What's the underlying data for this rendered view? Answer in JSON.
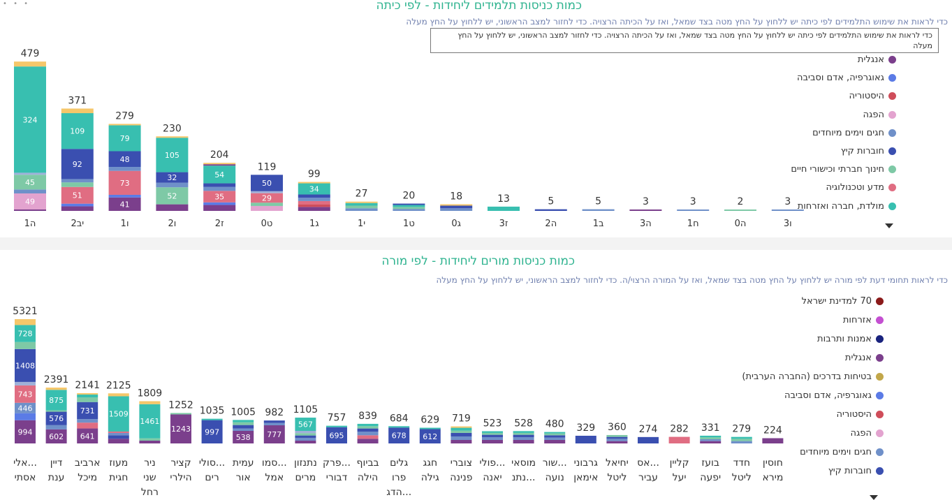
{
  "panel1": {
    "title": "כמות כניסות תלמידים ליחידות - לפי כיתה",
    "subtitle": "כדי לראות את שימוש התלמידים לפי כיתה יש ללחוץ על החץ מטה בצד שמאל, ואז על הכיתה הרצויה. כדי לחזור למצב הראשוני, יש ללחוץ על החץ מעלה",
    "tooltip": "כדי לראות את שימוש התלמידים לפי כיתה יש ללחוץ על החץ מטה בצד שמאל, ואז על הכיתה הרצויה. כדי לחזור למצב הראשוני, יש ללחוץ על החץ מעלה",
    "legend": [
      {
        "label": "אנגלית",
        "color": "#7b3f8c"
      },
      {
        "label": "גאוגרפיה, אדם וסביבה",
        "color": "#5b7be6"
      },
      {
        "label": "היסטוריה",
        "color": "#cf4d5a"
      },
      {
        "label": "הפגה",
        "color": "#e3a3cf"
      },
      {
        "label": "חגים וימים מיוחדים",
        "color": "#6f90c9"
      },
      {
        "label": "חוברות קיץ",
        "color": "#3a4fb0"
      },
      {
        "label": "חינוך חברתי וכישורי חיים",
        "color": "#7ec9a6"
      },
      {
        "label": "מדע וטכנולוגיה",
        "color": "#e06d82"
      },
      {
        "label": "מולדת, חברה ואזרחות",
        "color": "#38bfb0"
      }
    ]
  },
  "panel2": {
    "title": "כמות כניסות מורים ליחידות - לפי מורה",
    "subtitle": "כדי לראות תחומי דעת לפי מורה יש ללחוץ על החץ מטה בצד שמאל, ואז על המורה הרצוי/ה. כדי לחזור למצב הראשוני, יש ללחוץ על החץ מעלה",
    "legend": [
      {
        "label": "70 למדינת ישראל",
        "color": "#8b1a1a"
      },
      {
        "label": "אזרחות",
        "color": "#c44fd1"
      },
      {
        "label": "אמנות ותרבות",
        "color": "#1a237e"
      },
      {
        "label": "אנגלית",
        "color": "#7b3f8c"
      },
      {
        "label": "בטיחות בדרכים (החברה הערבית)",
        "color": "#c2a74a"
      },
      {
        "label": "גאוגרפיה, אדם וסביבה",
        "color": "#5b7be6"
      },
      {
        "label": "היסטוריה",
        "color": "#cf4d5a"
      },
      {
        "label": "הפגה",
        "color": "#e3a3cf"
      },
      {
        "label": "חגים וימים מיוחדים",
        "color": "#6f90c9"
      },
      {
        "label": "חוברות קיץ",
        "color": "#3a4fb0"
      }
    ]
  },
  "chart_data": [
    {
      "type": "bar",
      "stacked": true,
      "title": "כמות כניסות תלמידים ליחידות - לפי כיתה",
      "categories": [
        "ה1",
        "יב2",
        "ו1",
        "ו2",
        "ז2",
        "ט0",
        "ג1",
        "י1",
        "ט1",
        "ג0",
        "ז3",
        "ה2",
        "ב1",
        "ה3",
        "ח1",
        "ה0",
        "ו3"
      ],
      "totals": [
        479,
        371,
        279,
        230,
        204,
        119,
        99,
        27,
        20,
        18,
        13,
        5,
        5,
        3,
        3,
        2,
        3
      ],
      "segments": [
        [
          [
            "#7b3f8c",
            4
          ],
          [
            "#e3a3cf",
            49
          ],
          [
            "#6f90c9",
            12
          ],
          [
            "#7ec9a6",
            45
          ],
          [
            "#9fb0d8",
            6
          ],
          [
            "#38bfb0",
            324
          ],
          [
            "#f5c76a",
            15
          ]
        ],
        [
          [
            "#7b3f8c",
            14
          ],
          [
            "#5b7be6",
            8
          ],
          [
            "#e06d82",
            51
          ],
          [
            "#7ec9a6",
            14
          ],
          [
            "#6f90c9",
            10
          ],
          [
            "#3a4fb0",
            92
          ],
          [
            "#38bfb0",
            109
          ],
          [
            "#f5c76a",
            14
          ]
        ],
        [
          [
            "#7b3f8c",
            41
          ],
          [
            "#5b7be6",
            8
          ],
          [
            "#e06d82",
            73
          ],
          [
            "#6f90c9",
            12
          ],
          [
            "#3a4fb0",
            48
          ],
          [
            "#38bfb0",
            79
          ],
          [
            "#f5c76a",
            3
          ]
        ],
        [
          [
            "#7b3f8c",
            20
          ],
          [
            "#7ec9a6",
            52
          ],
          [
            "#6f90c9",
            14
          ],
          [
            "#3a4fb0",
            32
          ],
          [
            "#38bfb0",
            105
          ],
          [
            "#f5c76a",
            3
          ]
        ],
        [
          [
            "#7b3f8c",
            18
          ],
          [
            "#5b7be6",
            8
          ],
          [
            "#e06d82",
            35
          ],
          [
            "#6f90c9",
            12
          ],
          [
            "#3a4fb0",
            11
          ],
          [
            "#38bfb0",
            54
          ],
          [
            "#7b3f8c",
            4
          ],
          [
            "#f5c76a",
            3
          ]
        ],
        [
          [
            "#e3a3cf",
            15
          ],
          [
            "#7ec9a6",
            10
          ],
          [
            "#e06d82",
            29
          ],
          [
            "#9fb0d8",
            6
          ],
          [
            "#3a4fb0",
            50
          ]
        ],
        [
          [
            "#7b3f8c",
            12
          ],
          [
            "#cf4d5a",
            8
          ],
          [
            "#e06d82",
            10
          ],
          [
            "#6f90c9",
            10
          ],
          [
            "#3a4fb0",
            10
          ],
          [
            "#38bfb0",
            34
          ],
          [
            "#f5c76a",
            3
          ]
        ],
        [
          [
            "#6f90c9",
            8
          ],
          [
            "#7ec9a6",
            8
          ],
          [
            "#38bfb0",
            8
          ],
          [
            "#f5c76a",
            3
          ]
        ],
        [
          [
            "#6f90c9",
            6
          ],
          [
            "#7ec9a6",
            6
          ],
          [
            "#38bfb0",
            6
          ],
          [
            "#3a4fb0",
            2
          ]
        ],
        [
          [
            "#6f90c9",
            8
          ],
          [
            "#3a4fb0",
            8
          ],
          [
            "#f5c76a",
            2
          ]
        ],
        [
          [
            "#38bfb0",
            13
          ]
        ],
        [
          [
            "#3a4fb0",
            5
          ]
        ],
        [
          [
            "#6f90c9",
            5
          ]
        ],
        [
          [
            "#7b3f8c",
            3
          ]
        ],
        [
          [
            "#6f90c9",
            3
          ]
        ],
        [
          [
            "#7ec9a6",
            2
          ]
        ],
        [
          [
            "#6f90c9",
            3
          ]
        ]
      ],
      "data_labels": [
        [
          [
            1,
            49
          ],
          [
            3,
            45
          ],
          [
            5,
            324
          ]
        ],
        [
          [
            2,
            51
          ],
          [
            5,
            92
          ],
          [
            6,
            109
          ]
        ],
        [
          [
            0,
            41
          ],
          [
            2,
            73
          ],
          [
            4,
            48
          ],
          [
            5,
            79
          ]
        ],
        [
          [
            1,
            52
          ],
          [
            3,
            32
          ],
          [
            4,
            105
          ]
        ],
        [
          [
            2,
            35
          ],
          [
            5,
            54
          ]
        ],
        [
          [
            2,
            29
          ],
          [
            4,
            50
          ]
        ],
        [
          [
            5,
            34
          ]
        ],
        [],
        [],
        [],
        [],
        [],
        [],
        [],
        [],
        [],
        []
      ]
    },
    {
      "type": "bar",
      "stacked": true,
      "title": "כמות כניסות מורים ליחידות - לפי מורה",
      "categories": [
        [
          "...אלי",
          "אסתי"
        ],
        [
          "דיין",
          "ענת"
        ],
        [
          "ארביב",
          "מיכל"
        ],
        [
          "מעוז",
          "חגית"
        ],
        [
          "ניר",
          "שני",
          "רחל"
        ],
        [
          "קציר",
          "הילרי"
        ],
        [
          "...סולי",
          "רים"
        ],
        [
          "עמית",
          "אור"
        ],
        [
          "...סמו",
          "אמל"
        ],
        [
          "נתנזון",
          "מרים"
        ],
        [
          "...פרק",
          "דבורי"
        ],
        [
          "בביוף",
          "הילה"
        ],
        [
          "גלים",
          "פרו",
          "...הדג"
        ],
        [
          "חגג",
          "גילה"
        ],
        [
          "צוברי",
          "פנינה"
        ],
        [
          "...פולי",
          "יאנה"
        ],
        [
          "מוסאי",
          "...נתנ"
        ],
        [
          "...שור",
          "נועה"
        ],
        [
          "גרבוני",
          "אימאן"
        ],
        [
          "יחיאל",
          "ליטל"
        ],
        [
          "...אס",
          "עביר"
        ],
        [
          "קליין",
          "יעל"
        ],
        [
          "בועז",
          "יפעה"
        ],
        [
          "חדד",
          "ליטל"
        ],
        [
          "חוסין",
          "מירא"
        ]
      ],
      "totals": [
        5321,
        2391,
        2141,
        2125,
        1809,
        1252,
        1035,
        1005,
        982,
        1105,
        757,
        839,
        684,
        629,
        719,
        523,
        528,
        480,
        329,
        360,
        274,
        282,
        331,
        279,
        224
      ],
      "segments": [
        [
          [
            "#7b3f8c",
            994
          ],
          [
            "#5b7be6",
            300
          ],
          [
            "#6f90c9",
            446
          ],
          [
            "#e06d82",
            743
          ],
          [
            "#9fb0d8",
            150
          ],
          [
            "#3a4fb0",
            1408
          ],
          [
            "#7ec9a6",
            300
          ],
          [
            "#38bfb0",
            728
          ],
          [
            "#f5c76a",
            252
          ]
        ],
        [
          [
            "#7b3f8c",
            602
          ],
          [
            "#6f90c9",
            180
          ],
          [
            "#3a4fb0",
            576
          ],
          [
            "#7ec9a6",
            60
          ],
          [
            "#38bfb0",
            875
          ],
          [
            "#f5c76a",
            98
          ]
        ],
        [
          [
            "#7b3f8c",
            641
          ],
          [
            "#e06d82",
            250
          ],
          [
            "#6f90c9",
            150
          ],
          [
            "#3a4fb0",
            731
          ],
          [
            "#7ec9a6",
            200
          ],
          [
            "#38bfb0",
            120
          ],
          [
            "#f5c76a",
            49
          ]
        ],
        [
          [
            "#7b3f8c",
            200
          ],
          [
            "#3a4fb0",
            150
          ],
          [
            "#6f90c9",
            100
          ],
          [
            "#e06d82",
            40
          ],
          [
            "#38bfb0",
            1509
          ],
          [
            "#f5c76a",
            126
          ]
        ],
        [
          [
            "#7b3f8c",
            120
          ],
          [
            "#7ec9a6",
            100
          ],
          [
            "#38bfb0",
            1461
          ],
          [
            "#f5c76a",
            128
          ]
        ],
        [
          [
            "#7b3f8c",
            1243
          ],
          [
            "#7ec9a6",
            9
          ]
        ],
        [
          [
            "#3a4fb0",
            997
          ],
          [
            "#38bfb0",
            38
          ]
        ],
        [
          [
            "#7b3f8c",
            538
          ],
          [
            "#6f90c9",
            100
          ],
          [
            "#3a4fb0",
            150
          ],
          [
            "#7ec9a6",
            117
          ],
          [
            "#38bfb0",
            100
          ]
        ],
        [
          [
            "#7b3f8c",
            777
          ],
          [
            "#6f90c9",
            100
          ],
          [
            "#3a4fb0",
            105
          ]
        ],
        [
          [
            "#7b3f8c",
            120
          ],
          [
            "#6f90c9",
            120
          ],
          [
            "#3a4fb0",
            100
          ],
          [
            "#7ec9a6",
            100
          ],
          [
            "#9fb0d8",
            98
          ],
          [
            "#38bfb0",
            567
          ]
        ],
        [
          [
            "#3a4fb0",
            695
          ],
          [
            "#38bfb0",
            62
          ]
        ],
        [
          [
            "#7b3f8c",
            200
          ],
          [
            "#e06d82",
            150
          ],
          [
            "#6f90c9",
            150
          ],
          [
            "#3a4fb0",
            139
          ],
          [
            "#7ec9a6",
            100
          ],
          [
            "#38bfb0",
            100
          ]
        ],
        [
          [
            "#3a4fb0",
            678
          ],
          [
            "#38bfb0",
            6
          ]
        ],
        [
          [
            "#3a4fb0",
            612
          ],
          [
            "#38bfb0",
            17
          ]
        ],
        [
          [
            "#7b3f8c",
            150
          ],
          [
            "#6f90c9",
            150
          ],
          [
            "#3a4fb0",
            150
          ],
          [
            "#7ec9a6",
            100
          ],
          [
            "#38bfb0",
            120
          ],
          [
            "#f5c76a",
            49
          ]
        ],
        [
          [
            "#7b3f8c",
            150
          ],
          [
            "#6f90c9",
            120
          ],
          [
            "#3a4fb0",
            100
          ],
          [
            "#7ec9a6",
            80
          ],
          [
            "#38bfb0",
            73
          ]
        ],
        [
          [
            "#7b3f8c",
            150
          ],
          [
            "#6f90c9",
            120
          ],
          [
            "#3a4fb0",
            100
          ],
          [
            "#7ec9a6",
            80
          ],
          [
            "#38bfb0",
            78
          ]
        ],
        [
          [
            "#7b3f8c",
            150
          ],
          [
            "#6f90c9",
            100
          ],
          [
            "#3a4fb0",
            100
          ],
          [
            "#7ec9a6",
            80
          ],
          [
            "#38bfb0",
            50
          ]
        ],
        [
          [
            "#3a4fb0",
            329
          ]
        ],
        [
          [
            "#7b3f8c",
            100
          ],
          [
            "#6f90c9",
            100
          ],
          [
            "#3a4fb0",
            80
          ],
          [
            "#7ec9a6",
            80
          ]
        ],
        [
          [
            "#3a4fb0",
            274
          ]
        ],
        [
          [
            "#e06d82",
            282
          ]
        ],
        [
          [
            "#7b3f8c",
            100
          ],
          [
            "#6f90c9",
            80
          ],
          [
            "#7ec9a6",
            80
          ],
          [
            "#38bfb0",
            71
          ]
        ],
        [
          [
            "#6f90c9",
            100
          ],
          [
            "#7ec9a6",
            100
          ],
          [
            "#38bfb0",
            79
          ]
        ],
        [
          [
            "#7b3f8c",
            224
          ]
        ]
      ],
      "data_labels": [
        [
          [
            0,
            994
          ],
          [
            2,
            446
          ],
          [
            3,
            743
          ],
          [
            5,
            1408
          ],
          [
            7,
            728
          ]
        ],
        [
          [
            0,
            602
          ],
          [
            2,
            576
          ],
          [
            4,
            875
          ]
        ],
        [
          [
            0,
            641
          ],
          [
            3,
            731
          ]
        ],
        [
          [
            4,
            1509
          ]
        ],
        [
          [
            2,
            1461
          ]
        ],
        [
          [
            0,
            1243
          ]
        ],
        [
          [
            0,
            997
          ]
        ],
        [
          [
            0,
            538
          ]
        ],
        [
          [
            0,
            777
          ]
        ],
        [
          [
            5,
            567
          ]
        ],
        [
          [
            0,
            695
          ]
        ],
        [],
        [
          [
            0,
            678
          ]
        ],
        [
          [
            0,
            612
          ]
        ],
        [],
        [],
        [],
        [],
        [],
        [],
        [],
        [],
        [],
        [],
        []
      ]
    }
  ]
}
